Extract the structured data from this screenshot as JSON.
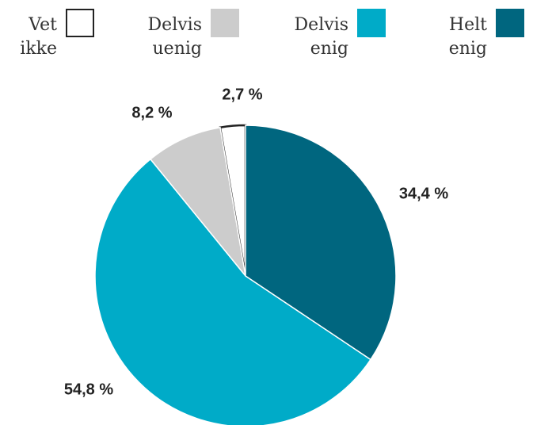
{
  "chart_data": {
    "type": "pie",
    "categories": [
      "Vet ikke",
      "Delvis uenig",
      "Delvis enig",
      "Helt enig"
    ],
    "values": [
      2.7,
      8.2,
      54.8,
      34.4
    ],
    "value_labels": [
      "2,7 %",
      "8,2 %",
      "54,8 %",
      "34,4 %"
    ],
    "colors": [
      "#ffffff",
      "#cccccc",
      "#00abc8",
      "#00667f"
    ],
    "legend": "top"
  }
}
